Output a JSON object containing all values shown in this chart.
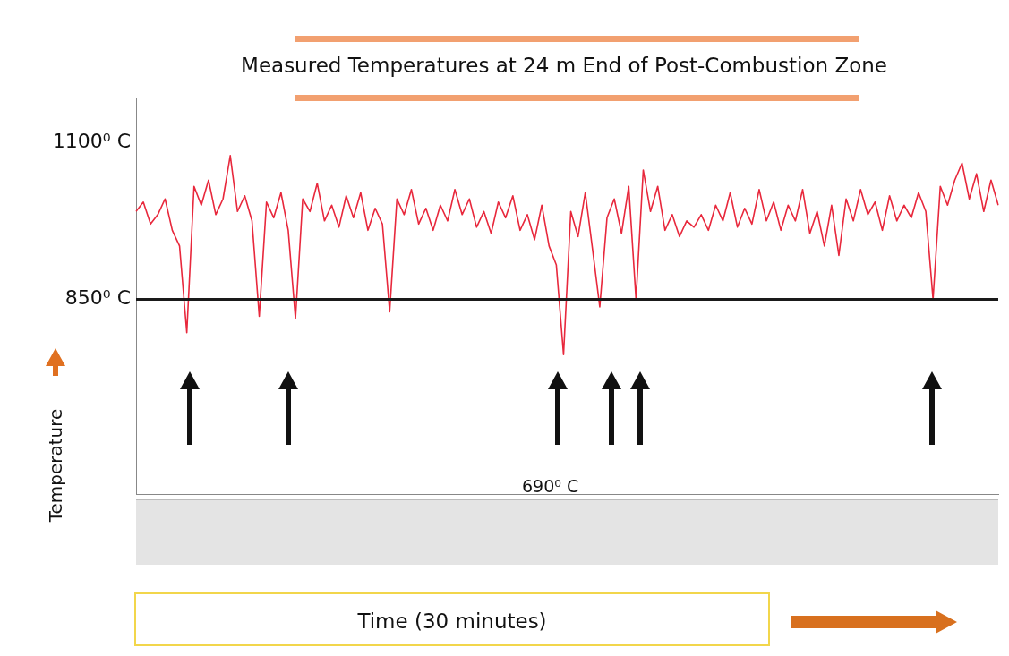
{
  "chart_data": {
    "type": "line",
    "title": "Measured Temperatures at 24 m End of Post-Combustion Zone",
    "ylabel": "Temperature",
    "categories": [
      null,
      null,
      null,
      null,
      null,
      null,
      null,
      null,
      null,
      null,
      null,
      null,
      null,
      null,
      null,
      null,
      null,
      null,
      null,
      null,
      null,
      null,
      null,
      null,
      null,
      null,
      null,
      null,
      null,
      null,
      null,
      null,
      null,
      null,
      null,
      null,
      null,
      null,
      null,
      null,
      null,
      null,
      null,
      null,
      null,
      null,
      null,
      null,
      null,
      null,
      null,
      null,
      null,
      null,
      null,
      null,
      null,
      null,
      null,
      null,
      null,
      null,
      null,
      null,
      null,
      null,
      null,
      null,
      null,
      null,
      null,
      null,
      null,
      null,
      null,
      null,
      null,
      null,
      null,
      null,
      null,
      null,
      null,
      null,
      null,
      null,
      null,
      null,
      null,
      null,
      null,
      null,
      null,
      null,
      null,
      null,
      null,
      null,
      null,
      null,
      null,
      null,
      null,
      null,
      null,
      null,
      null,
      null,
      null,
      null,
      null,
      null,
      null,
      null,
      null,
      null,
      null,
      null,
      null,
      null
    ],
    "series": [
      {
        "color": "#e8283c",
        "values": [
          990,
          1005,
          970,
          985,
          1010,
          960,
          935,
          797,
          1030,
          1000,
          1040,
          985,
          1010,
          1079,
          990,
          1015,
          975,
          823,
          1005,
          980,
          1020,
          960,
          819,
          1010,
          990,
          1035,
          975,
          1000,
          965,
          1015,
          980,
          1020,
          960,
          995,
          970,
          830,
          1010,
          985,
          1025,
          970,
          995,
          960,
          1000,
          975,
          1025,
          985,
          1010,
          965,
          990,
          955,
          1005,
          980,
          1015,
          960,
          985,
          945,
          1000,
          935,
          905,
          762,
          990,
          950,
          1020,
          930,
          838,
          980,
          1010,
          955,
          1030,
          850,
          1056,
          990,
          1030,
          960,
          985,
          950,
          975,
          965,
          985,
          960,
          1000,
          975,
          1020,
          965,
          995,
          970,
          1025,
          975,
          1005,
          960,
          1000,
          975,
          1025,
          955,
          990,
          935,
          1000,
          920,
          1010,
          975,
          1025,
          985,
          1005,
          960,
          1015,
          975,
          1000,
          980,
          1020,
          990,
          850,
          1030,
          1000,
          1040,
          1067,
          1010,
          1050,
          990,
          1040,
          1000
        ]
      }
    ],
    "ylim": [
      540,
      1170
    ],
    "yticks": [
      {
        "value": 1100,
        "label": "1100⁰ C"
      },
      {
        "value": 850,
        "label": "850⁰ C"
      }
    ],
    "ref_lines": [
      {
        "axis": "y",
        "value": 850,
        "color": "#1a1a1a"
      }
    ],
    "annotations": [
      "690⁰ C",
      "Time (30 minutes)"
    ],
    "marker": "none",
    "grid": false,
    "legend": false,
    "tick_labels": "y"
  }
}
